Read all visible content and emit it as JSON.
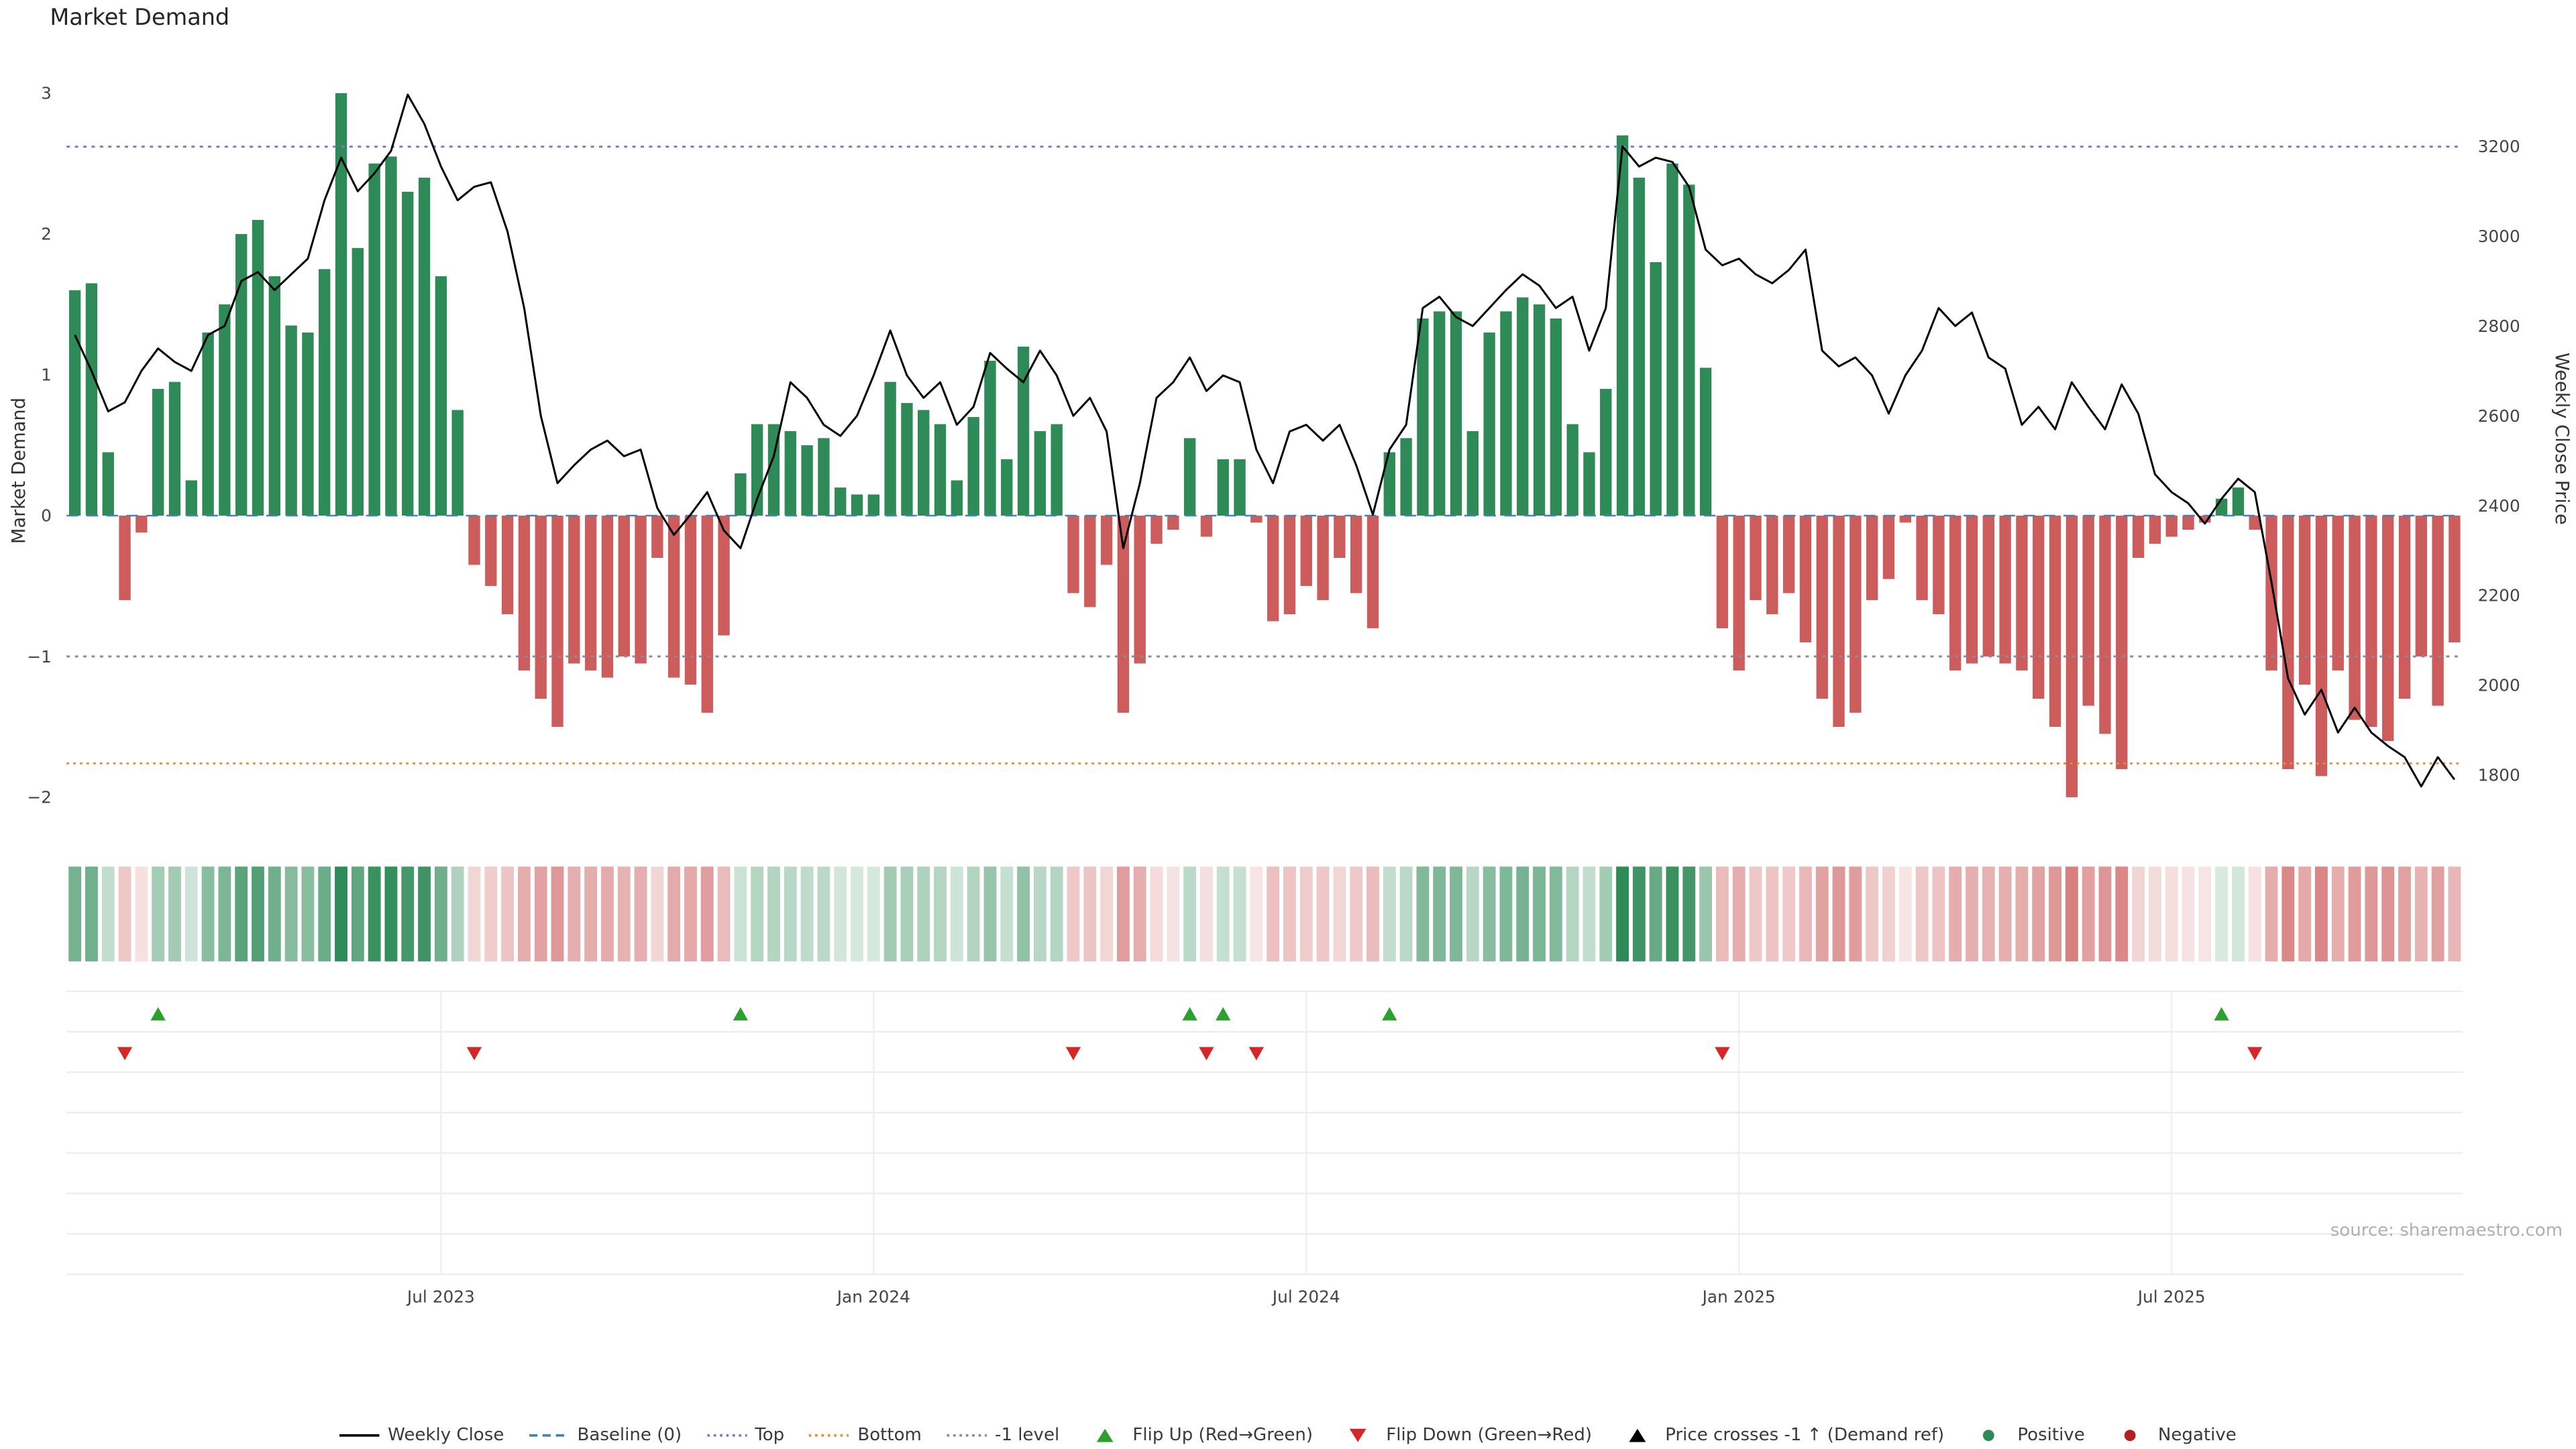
{
  "title": "Market Demand",
  "source": "source: sharemaestro.com",
  "axes": {
    "left_label": "Market Demand",
    "right_label": "Weekly Close Price",
    "left_ticks": [
      3,
      2,
      1,
      0,
      -1,
      -2
    ],
    "right_ticks": [
      3200,
      3000,
      2800,
      2600,
      2400,
      2200,
      2000,
      1800
    ]
  },
  "chart_data": {
    "type": "bar+line",
    "x_unit": "week",
    "grid": "off",
    "legend_position": "bottom",
    "left_axis_range": [
      -2.15,
      3.12
    ],
    "right_axis_range": [
      1704,
      3355
    ],
    "x_tick_labels": [
      {
        "index": 22,
        "label": "Jul 2023"
      },
      {
        "index": 48,
        "label": "Jan 2024"
      },
      {
        "index": 74,
        "label": "Jul 2024"
      },
      {
        "index": 100,
        "label": "Jan 2025"
      },
      {
        "index": 126,
        "label": "Jul 2025"
      }
    ],
    "thresholds": {
      "baseline": 0,
      "top": 2.62,
      "bottom": -1.76,
      "minus_one": -1
    },
    "flip_up_indices": [
      5,
      40,
      67,
      69,
      79,
      129
    ],
    "flip_down_indices": [
      3,
      24,
      60,
      68,
      71,
      99,
      131
    ],
    "series": [
      {
        "name": "Market Demand",
        "type": "bar",
        "axis": "left",
        "values": [
          1.6,
          1.65,
          0.45,
          -0.6,
          -0.12,
          0.9,
          0.95,
          0.25,
          1.3,
          1.5,
          2,
          2.1,
          1.7,
          1.35,
          1.3,
          1.75,
          3,
          1.9,
          2.5,
          2.55,
          2.3,
          2.4,
          1.7,
          0.75,
          -0.35,
          -0.5,
          -0.7,
          -1.1,
          -1.3,
          -1.5,
          -1.05,
          -1.1,
          -1.15,
          -1,
          -1.05,
          -0.3,
          -1.15,
          -1.2,
          -1.4,
          -0.85,
          0.3,
          0.65,
          0.65,
          0.6,
          0.5,
          0.55,
          0.2,
          0.15,
          0.15,
          0.95,
          0.8,
          0.75,
          0.65,
          0.25,
          0.7,
          1.1,
          0.4,
          1.2,
          0.6,
          0.65,
          -0.55,
          -0.65,
          -0.35,
          -1.4,
          -1.05,
          -0.2,
          -0.1,
          0.55,
          -0.15,
          0.4,
          0.4,
          -0.05,
          -0.75,
          -0.7,
          -0.5,
          -0.6,
          -0.3,
          -0.55,
          -0.8,
          0.45,
          0.55,
          1.4,
          1.45,
          1.45,
          0.6,
          1.3,
          1.45,
          1.55,
          1.5,
          1.4,
          0.65,
          0.45,
          0.9,
          2.7,
          2.4,
          1.8,
          2.5,
          2.35,
          1.05,
          -0.8,
          -1.1,
          -0.6,
          -0.7,
          -0.55,
          -0.9,
          -1.3,
          -1.5,
          -1.4,
          -0.6,
          -0.45,
          -0.05,
          -0.6,
          -0.7,
          -1.1,
          -1.05,
          -1,
          -1.05,
          -1.1,
          -1.3,
          -1.5,
          -2,
          -1.35,
          -1.55,
          -1.8,
          -0.3,
          -0.2,
          -0.15,
          -0.1,
          -0.05,
          0.12,
          0.2,
          -0.1,
          -1.1,
          -1.8,
          -1.2,
          -1.85,
          -1.1,
          -1.45,
          -1.5,
          -1.6,
          -1.3,
          -1,
          -1.35,
          -0.9
        ]
      },
      {
        "name": "Weekly Close",
        "type": "line",
        "axis": "right",
        "values": [
          2780,
          2700,
          2610,
          2630,
          2700,
          2750,
          2720,
          2700,
          2780,
          2800,
          2900,
          2920,
          2880,
          2915,
          2950,
          3080,
          3175,
          3100,
          3140,
          3190,
          3315,
          3250,
          3155,
          3080,
          3110,
          3120,
          3010,
          2840,
          2600,
          2450,
          2490,
          2525,
          2545,
          2510,
          2525,
          2395,
          2335,
          2380,
          2430,
          2345,
          2305,
          2415,
          2510,
          2675,
          2640,
          2580,
          2555,
          2600,
          2690,
          2790,
          2690,
          2640,
          2675,
          2580,
          2620,
          2740,
          2705,
          2675,
          2745,
          2690,
          2600,
          2640,
          2565,
          2305,
          2450,
          2640,
          2675,
          2730,
          2655,
          2690,
          2675,
          2525,
          2450,
          2565,
          2580,
          2545,
          2580,
          2490,
          2380,
          2525,
          2580,
          2840,
          2865,
          2820,
          2800,
          2840,
          2880,
          2915,
          2890,
          2840,
          2865,
          2745,
          2840,
          3200,
          3155,
          3175,
          3165,
          3110,
          2970,
          2935,
          2950,
          2915,
          2895,
          2925,
          2970,
          2745,
          2710,
          2730,
          2690,
          2605,
          2690,
          2745,
          2840,
          2800,
          2830,
          2730,
          2705,
          2580,
          2620,
          2570,
          2675,
          2620,
          2570,
          2670,
          2605,
          2470,
          2430,
          2405,
          2360,
          2415,
          2460,
          2430,
          2230,
          2015,
          1935,
          1990,
          1895,
          1950,
          1895,
          1865,
          1840,
          1775,
          1840,
          1790
        ]
      }
    ]
  },
  "legend": {
    "items": [
      {
        "label": "Weekly Close",
        "shape": "line",
        "color": "#000000"
      },
      {
        "label": "Baseline (0)",
        "shape": "dashed-line",
        "color": "#4682b4"
      },
      {
        "label": "Top",
        "shape": "dotted-line",
        "color": "#7a7acc"
      },
      {
        "label": "Bottom",
        "shape": "dotted-line",
        "color": "#e09330"
      },
      {
        "label": "-1 level",
        "shape": "dotted-line",
        "color": "#8a8aa0"
      },
      {
        "label": "Flip Up (Red→Green)",
        "shape": "triangle-up",
        "color": "#2ca02c"
      },
      {
        "label": "Flip Down (Green→Red)",
        "shape": "triangle-down",
        "color": "#d62728"
      },
      {
        "label": "Price crosses -1 ↑ (Demand ref)",
        "shape": "triangle-up",
        "color": "#000000"
      },
      {
        "label": "Positive",
        "shape": "dot",
        "color": "#2e8b57"
      },
      {
        "label": "Negative",
        "shape": "dot",
        "color": "#b22222"
      }
    ]
  },
  "colors": {
    "positive_bar": "#2e8b57",
    "negative_bar": "#cd5c5c",
    "positive_rgb": "46,139,87",
    "negative_rgb": "205,92,92",
    "price_line": "#000000",
    "baseline": "#4682b4",
    "top_line": "#7a7acc",
    "bottom_line": "#e09330",
    "minus_one_line": "#8a8aa0",
    "flip_up": "#2ca02c",
    "flip_down": "#d62728",
    "grid": "#ededed",
    "tick_text": "#444444",
    "source_text": "#b0b0b0"
  }
}
